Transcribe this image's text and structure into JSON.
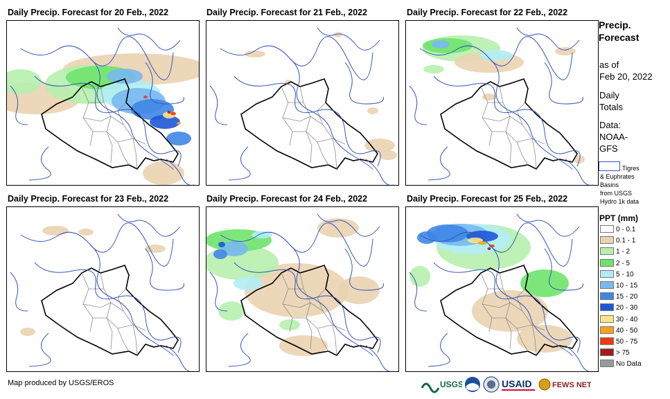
{
  "panels": [
    {
      "title": "Daily Precip. Forecast for 20 Feb., 2022"
    },
    {
      "title": "Daily Precip. Forecast for 21 Feb., 2022"
    },
    {
      "title": "Daily Precip. Forecast for 22 Feb., 2022"
    },
    {
      "title": "Daily Precip. Forecast for 23 Feb., 2022"
    },
    {
      "title": "Daily Precip. Forecast for 24 Feb., 2022"
    },
    {
      "title": "Daily Precip. Forecast for 25 Feb., 2022"
    }
  ],
  "legend": {
    "title_line1": "Precip.",
    "title_line2": "Forecast",
    "as_of": "as of",
    "date": "Feb 20, 2022",
    "daily": "Daily",
    "totals": "Totals",
    "data_label": "Data:",
    "data_source1": "NOAA-",
    "data_source2": "GFS",
    "basin_line1": "Tigres",
    "basin_line2": "& Euphrates",
    "basin_line3": "Basins",
    "basin_line4": "from USGS",
    "basin_line5": "Hydro 1k data",
    "ppt_title": "PPT (mm)",
    "classes": [
      {
        "label": "0 - 0.1",
        "color": "#ffffff"
      },
      {
        "label": "0.1 - 1",
        "color": "#ead3b0"
      },
      {
        "label": "1 - 2",
        "color": "#b6efae"
      },
      {
        "label": "2 - 5",
        "color": "#6fe36b"
      },
      {
        "label": "5 - 10",
        "color": "#b3edf4"
      },
      {
        "label": "10 - 15",
        "color": "#79b8f0"
      },
      {
        "label": "15 - 20",
        "color": "#3f86e6"
      },
      {
        "label": "20 - 30",
        "color": "#1e58d6"
      },
      {
        "label": "30 - 40",
        "color": "#fde48a"
      },
      {
        "label": "40 - 50",
        "color": "#f7a21c"
      },
      {
        "label": "50 - 75",
        "color": "#f2380e"
      },
      {
        "label": "> 75",
        "color": "#a41b1b"
      },
      {
        "label": "No Data",
        "color": "#9a9a9a"
      }
    ]
  },
  "footer": {
    "credit": "Map produced by USGS/EROS",
    "logos": [
      "USGS",
      "NOAA",
      "DOI",
      "USAID",
      "FEWS NET"
    ]
  }
}
